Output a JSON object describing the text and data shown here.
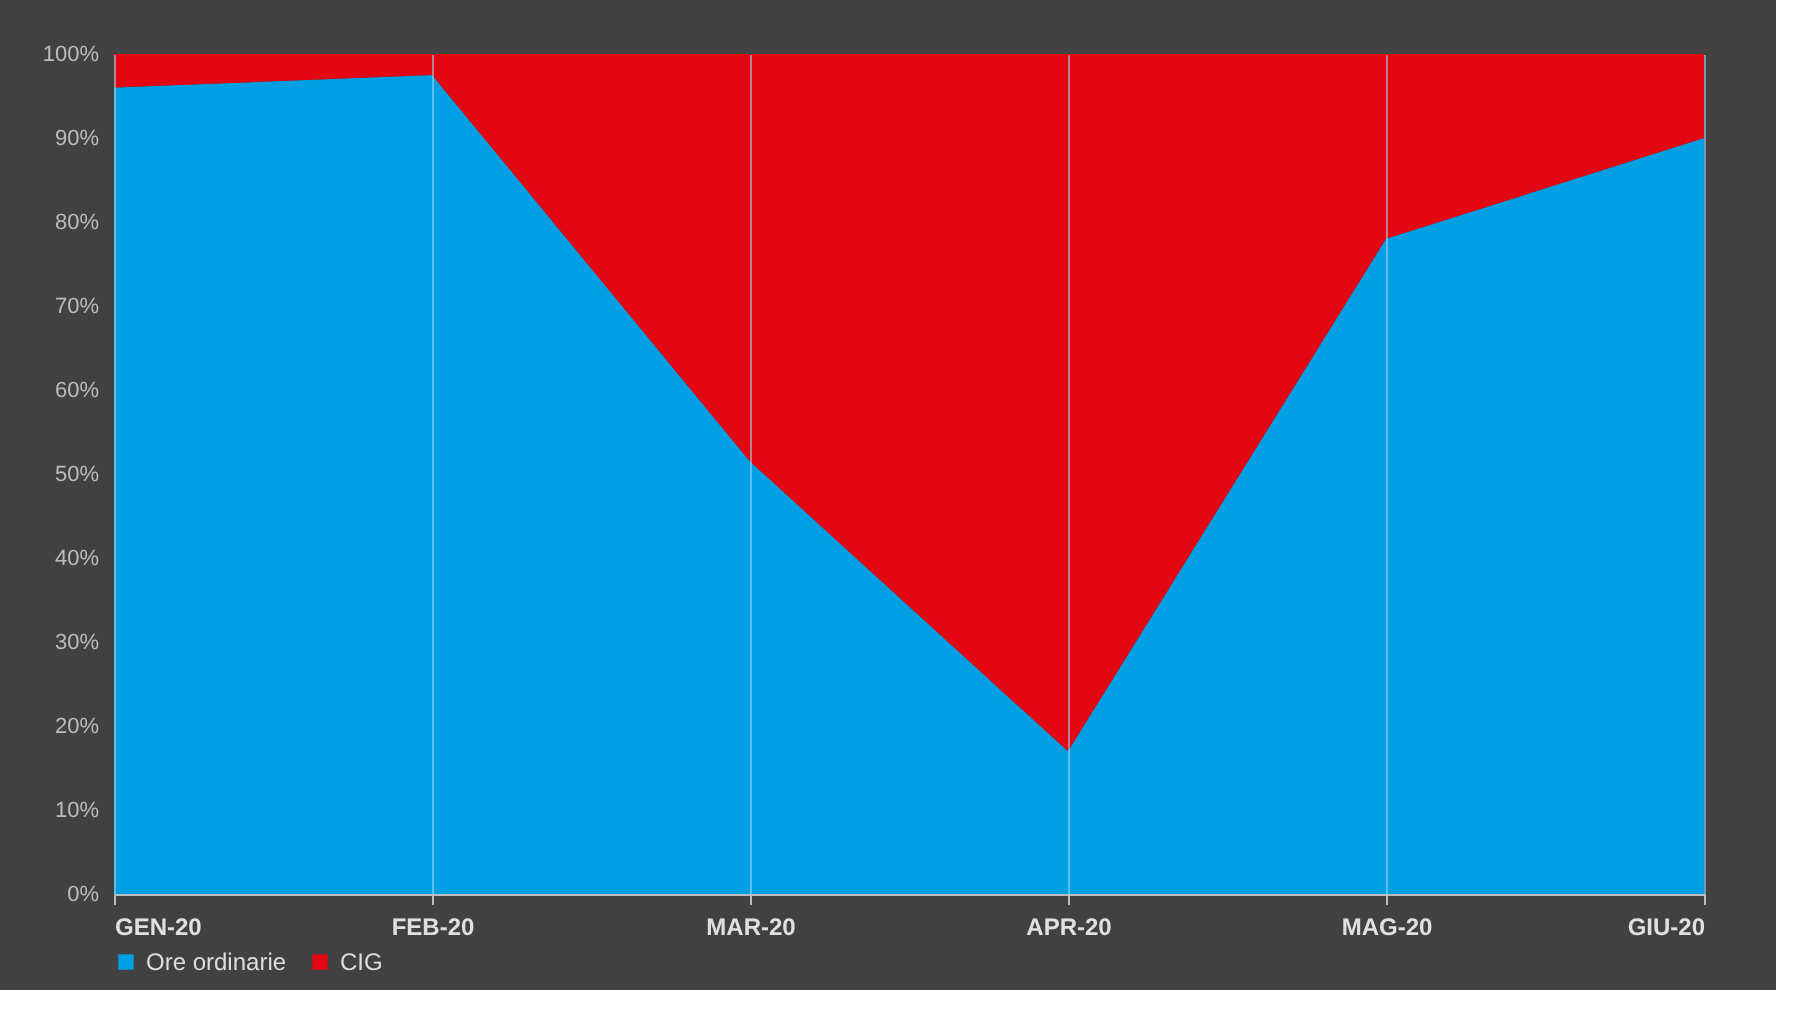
{
  "chart_data": {
    "type": "area",
    "stacked": true,
    "categories": [
      "GEN-20",
      "FEB-20",
      "MAR-20",
      "APR-20",
      "MAG-20",
      "GIU-20"
    ],
    "series": [
      {
        "name": "Ore ordinarie",
        "color": "#009fe3",
        "values": [
          96,
          97.5,
          51.5,
          17,
          78,
          90
        ]
      },
      {
        "name": "CIG",
        "color": "#e30613",
        "values": [
          4,
          2.5,
          48.5,
          83,
          22,
          10
        ]
      }
    ],
    "ylim": [
      0,
      100
    ],
    "yticks": [
      {
        "value": 0,
        "label": "0%"
      },
      {
        "value": 10,
        "label": "10%"
      },
      {
        "value": 20,
        "label": "20%"
      },
      {
        "value": 30,
        "label": "30%"
      },
      {
        "value": 40,
        "label": "40%"
      },
      {
        "value": 50,
        "label": "50%"
      },
      {
        "value": 60,
        "label": "60%"
      },
      {
        "value": 70,
        "label": "70%"
      },
      {
        "value": 80,
        "label": "80%"
      },
      {
        "value": 90,
        "label": "90%"
      },
      {
        "value": 100,
        "label": "100%"
      }
    ],
    "grid": "x",
    "legend": "bottom"
  }
}
